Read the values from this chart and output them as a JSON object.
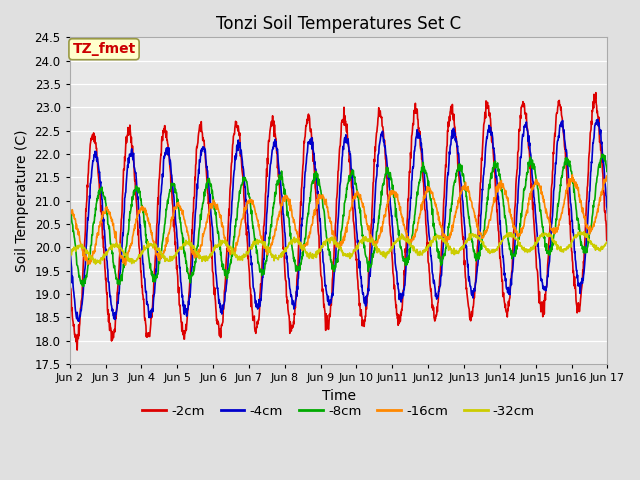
{
  "title": "Tonzi Soil Temperatures Set C",
  "xlabel": "Time",
  "ylabel": "Soil Temperature (C)",
  "ylim": [
    17.5,
    24.5
  ],
  "yticks": [
    17.5,
    18.0,
    18.5,
    19.0,
    19.5,
    20.0,
    20.5,
    21.0,
    21.5,
    22.0,
    22.5,
    23.0,
    23.5,
    24.0,
    24.5
  ],
  "xtick_labels": [
    "Jun 2",
    "Jun 3",
    "Jun 4",
    "Jun 5",
    "Jun 6",
    "Jun 7",
    "Jun 8",
    "Jun 9",
    "Jun 10",
    "Jun11",
    "Jun12",
    "Jun13",
    "Jun14",
    "Jun15",
    "Jun16",
    "Jun 17"
  ],
  "series_labels": [
    "-2cm",
    "-4cm",
    "-8cm",
    "-16cm",
    "-32cm"
  ],
  "series_colors": [
    "#dd0000",
    "#0000cc",
    "#00aa00",
    "#ff8800",
    "#cccc00"
  ],
  "line_widths": [
    1.2,
    1.2,
    1.2,
    1.2,
    1.2
  ],
  "bg_color": "#e8e8e8",
  "grid_color": "#ffffff",
  "annotation_text": "TZ_fmet",
  "annotation_color": "#cc0000",
  "annotation_bg": "#ffffcc",
  "annotation_border": "#999944",
  "n_points": 1440,
  "days": 15
}
